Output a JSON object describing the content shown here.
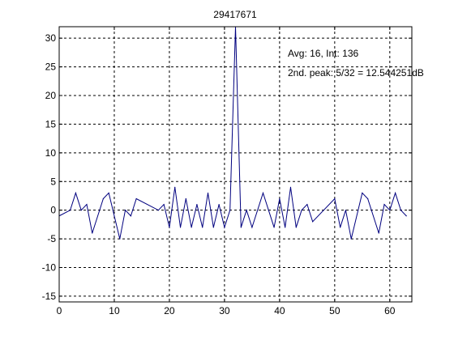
{
  "chart_data": {
    "type": "line",
    "title": "29417671",
    "xlabel": "",
    "ylabel": "",
    "xlim": [
      0,
      64
    ],
    "ylim": [
      -16,
      32
    ],
    "xticks": [
      0,
      10,
      20,
      30,
      40,
      50,
      60
    ],
    "yticks": [
      -15,
      -10,
      -5,
      0,
      5,
      10,
      15,
      20,
      25,
      30
    ],
    "grid": true,
    "annotations": [
      "Avg: 16, Int: 136",
      "2nd. peak: 5/32 = 12.544251dB"
    ],
    "series": [
      {
        "color": "#00007f",
        "x": [
          0,
          2,
          3,
          4,
          5,
          6,
          8,
          9,
          11,
          12,
          13,
          14,
          18,
          19,
          20,
          21,
          22,
          23,
          24,
          25,
          26,
          27,
          28,
          29,
          30,
          31,
          32,
          33,
          34,
          35,
          37,
          38,
          39,
          40,
          41,
          42,
          43,
          44,
          45,
          46,
          50,
          51,
          52,
          53,
          55,
          56,
          58,
          59,
          60,
          61,
          62,
          63
        ],
        "values": [
          -1,
          0,
          3,
          0,
          1,
          -4,
          2,
          3,
          -5,
          0,
          -1,
          2,
          0,
          1,
          -3,
          4,
          -3,
          2,
          -3,
          1,
          -3,
          3,
          -3,
          1,
          -3,
          0,
          32,
          -3,
          0,
          -3,
          3,
          0,
          -3,
          2,
          -3,
          4,
          -3,
          0,
          1,
          -2,
          2,
          -3,
          0,
          -5,
          3,
          2,
          -4,
          1,
          0,
          3,
          0,
          -1
        ]
      }
    ]
  }
}
